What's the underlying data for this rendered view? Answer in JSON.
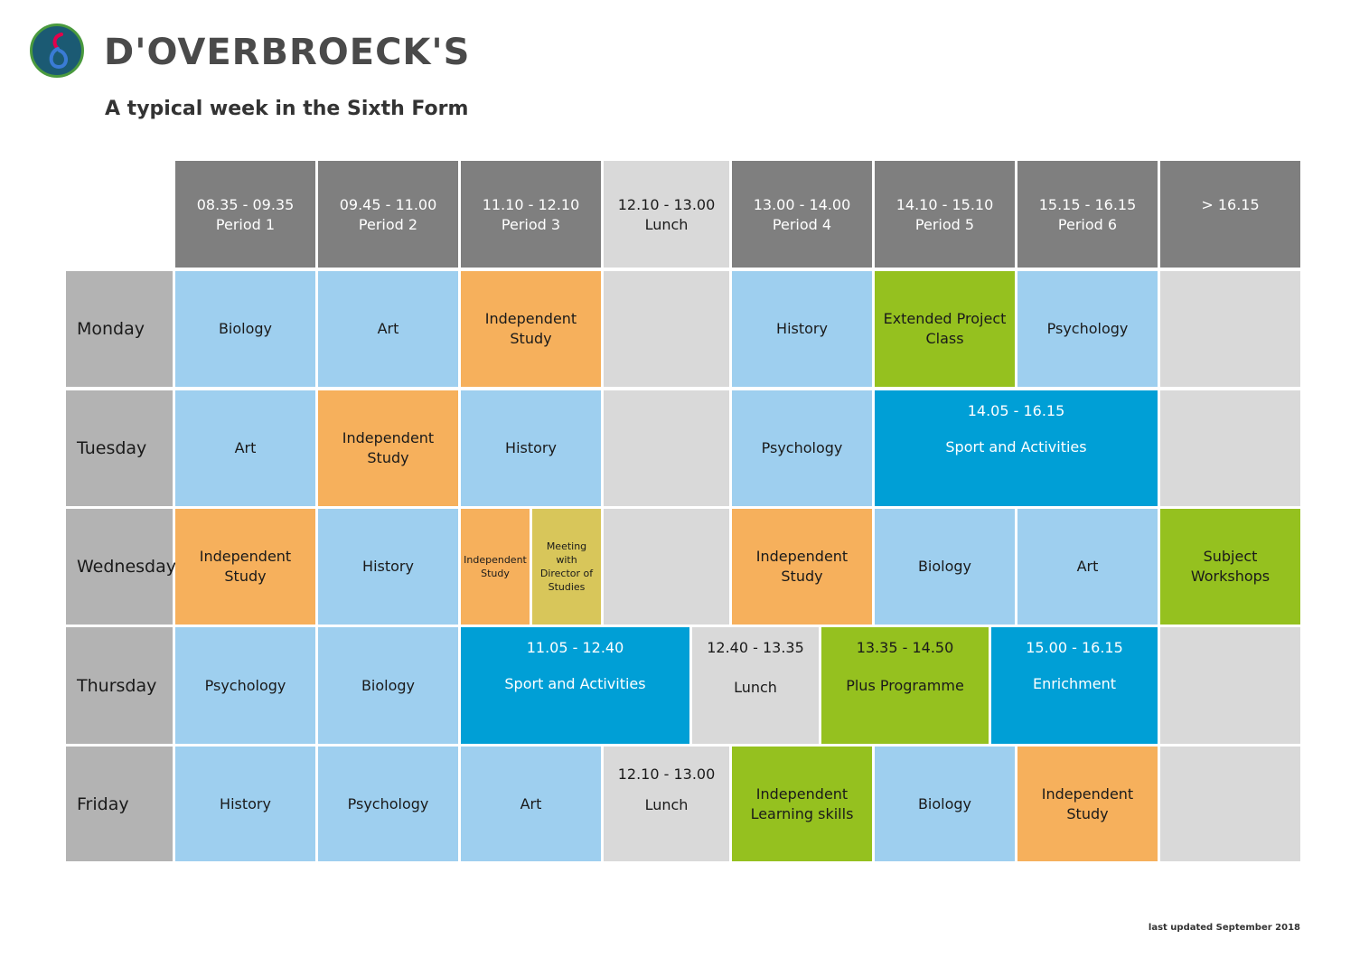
{
  "brand": {
    "name": "D'OVERBROECK'S"
  },
  "subtitle": "A typical week in the Sixth Form",
  "colors": {
    "header": "#7f7f7f",
    "lunch": "#d9d9d9",
    "subject": "#9ecfef",
    "independent": "#f6b05c",
    "project": "#95c11f",
    "sport": "#009fd6",
    "meeting": "#d8c65a"
  },
  "header": {
    "p1_time": "08.35 - 09.35",
    "p1_name": "Period 1",
    "p2_time": "09.45 - 11.00",
    "p2_name": "Period 2",
    "p3_time": "11.10 - 12.10",
    "p3_name": "Period 3",
    "lunch_time": "12.10 - 13.00",
    "lunch_name": "Lunch",
    "p4_time": "13.00 - 14.00",
    "p4_name": "Period 4",
    "p5_time": "14.10 - 15.10",
    "p5_name": "Period 5",
    "p6_time": "15.15 - 16.15",
    "p6_name": "Period 6",
    "after_time": "> 16.15"
  },
  "days": {
    "mon": "Monday",
    "tue": "Tuesday",
    "wed": "Wednesday",
    "thu": "Thursday",
    "fri": "Friday"
  },
  "monday": {
    "p1": "Biology",
    "p2": "Art",
    "p3_a": "Independent",
    "p3_b": "Study",
    "p4": "History",
    "p5_a": "Extended Project",
    "p5_b": "Class",
    "p6": "Psychology"
  },
  "tuesday": {
    "p1": "Art",
    "p2_a": "Independent",
    "p2_b": "Study",
    "p3": "History",
    "p4": "Psychology",
    "sport_time": "14.05 - 16.15",
    "sport_name": "Sport and Activities"
  },
  "wednesday": {
    "p1_a": "Independent",
    "p1_b": "Study",
    "p2": "History",
    "p3a_a": "Independent",
    "p3a_b": "Study",
    "p3b_a": "Meeting with",
    "p3b_b": "Director of",
    "p3b_c": "Studies",
    "p4_a": "Independent",
    "p4_b": "Study",
    "p5": "Biology",
    "p6": "Art",
    "after_a": "Subject",
    "after_b": "Workshops"
  },
  "thursday": {
    "p1": "Psychology",
    "p2": "Biology",
    "sport_time": "11.05 - 12.40",
    "sport_name": "Sport and Activities",
    "lunch_time": "12.40 - 13.35",
    "lunch_name": "Lunch",
    "plus_time": "13.35 - 14.50",
    "plus_name": "Plus Programme",
    "enrich_time": "15.00 - 16.15",
    "enrich_name": "Enrichment"
  },
  "friday": {
    "p1": "History",
    "p2": "Psychology",
    "p3": "Art",
    "lunch_time": "12.10 - 13.00",
    "lunch_name": "Lunch",
    "p4_a": "Independent",
    "p4_b": "Learning skills",
    "p5": "Biology",
    "p6_a": "Independent",
    "p6_b": "Study"
  },
  "footer": "last updated  September 2018"
}
